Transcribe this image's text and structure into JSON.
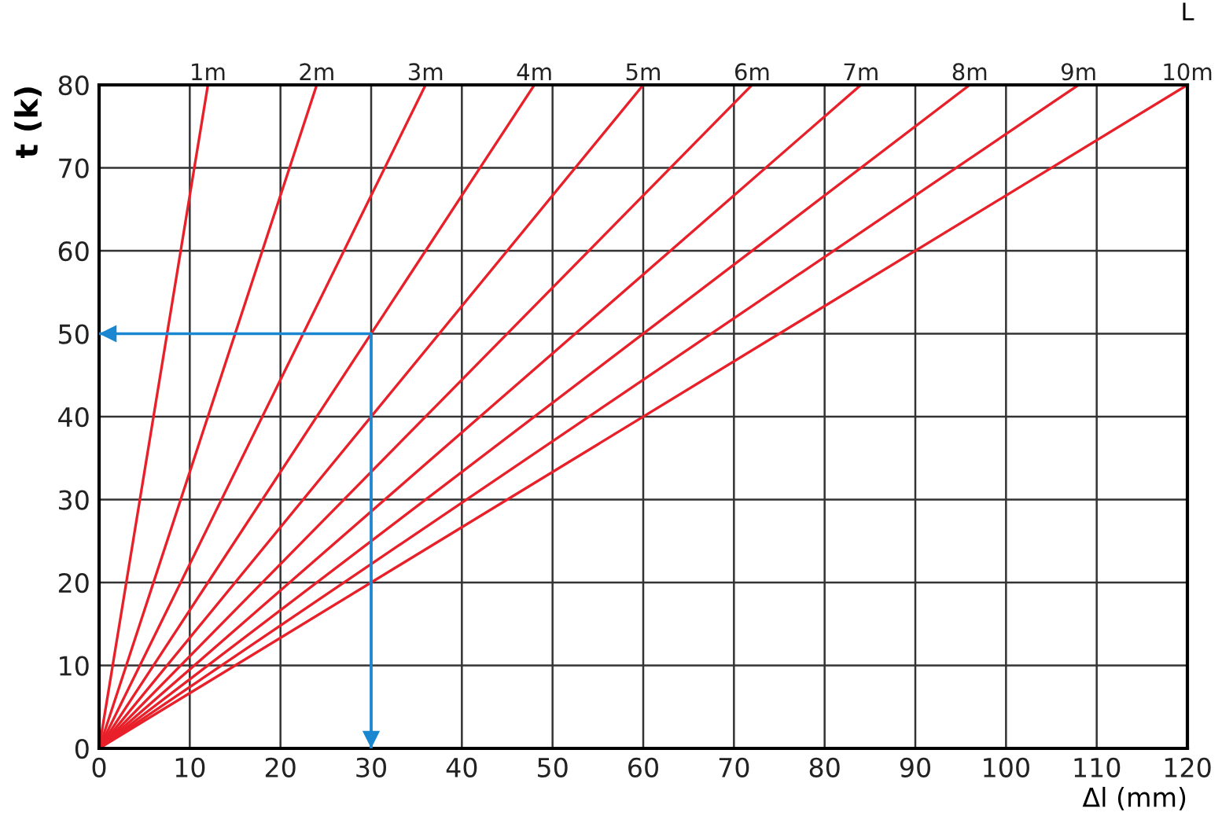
{
  "chart_data": {
    "type": "line",
    "xlabel": "Δl (mm)",
    "ylabel": "t (k)",
    "legend_title": "L",
    "xlim": [
      0,
      120
    ],
    "ylim": [
      0,
      80
    ],
    "xticks": [
      0,
      10,
      20,
      30,
      40,
      50,
      60,
      70,
      80,
      90,
      100,
      110,
      120
    ],
    "yticks": [
      0,
      10,
      20,
      30,
      40,
      50,
      60,
      70,
      80
    ],
    "grid": true,
    "legend": false,
    "series": [
      {
        "name": "1m",
        "color": "#e8202a",
        "x": [
          0,
          12
        ],
        "values": [
          0,
          80
        ]
      },
      {
        "name": "2m",
        "color": "#e8202a",
        "x": [
          0,
          24
        ],
        "values": [
          0,
          80
        ]
      },
      {
        "name": "3m",
        "color": "#e8202a",
        "x": [
          0,
          36
        ],
        "values": [
          0,
          80
        ]
      },
      {
        "name": "4m",
        "color": "#e8202a",
        "x": [
          0,
          48
        ],
        "values": [
          0,
          80
        ]
      },
      {
        "name": "5m",
        "color": "#e8202a",
        "x": [
          0,
          60
        ],
        "values": [
          0,
          80
        ]
      },
      {
        "name": "6m",
        "color": "#e8202a",
        "x": [
          0,
          72
        ],
        "values": [
          0,
          80
        ]
      },
      {
        "name": "7m",
        "color": "#e8202a",
        "x": [
          0,
          84
        ],
        "values": [
          0,
          80
        ]
      },
      {
        "name": "8m",
        "color": "#e8202a",
        "x": [
          0,
          96
        ],
        "values": [
          0,
          80
        ]
      },
      {
        "name": "9m",
        "color": "#e8202a",
        "x": [
          0,
          108
        ],
        "values": [
          0,
          80
        ]
      },
      {
        "name": "10m",
        "color": "#e8202a",
        "x": [
          0,
          120
        ],
        "values": [
          0,
          80
        ]
      },
      {
        "color": "#1a87d0",
        "x": [
          0,
          30,
          30
        ],
        "values": [
          50,
          50,
          0
        ]
      }
    ]
  }
}
